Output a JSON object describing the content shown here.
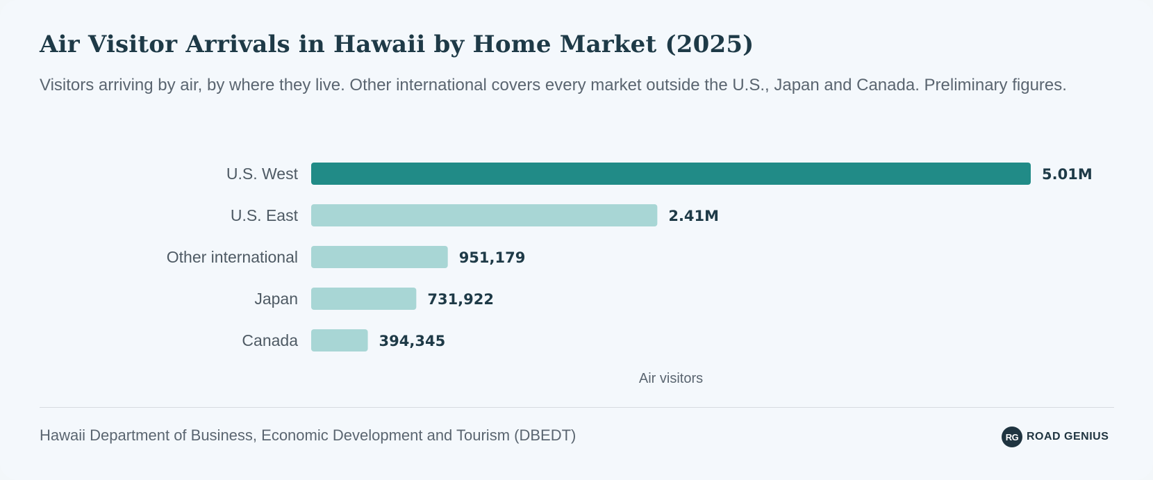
{
  "title": "Air Visitor Arrivals in Hawaii by Home Market (2025)",
  "subtitle": "Visitors arriving by air, by where they live. Other international covers every market outside the U.S., Japan and Canada. Preliminary figures.",
  "source": "Hawaii Department of Business, Economic Development and Tourism (DBEDT)",
  "brand": {
    "logo_text": "RG",
    "name": "ROAD GENIUS"
  },
  "colors": {
    "highlight": "#218b87",
    "bar": "#a8d6d5",
    "label": "#4e5a64",
    "value": "#1e3a47"
  },
  "chart_data": {
    "type": "bar",
    "orientation": "horizontal",
    "xlabel": "Air visitors",
    "categories": [
      "U.S. West",
      "U.S. East",
      "Other international",
      "Japan",
      "Canada"
    ],
    "values": [
      5010000,
      2410000,
      951179,
      731922,
      394345
    ],
    "value_labels": [
      "5.01M",
      "2.41M",
      "951,179",
      "731,922",
      "394,345"
    ],
    "highlight_index": 0,
    "grid": false
  }
}
